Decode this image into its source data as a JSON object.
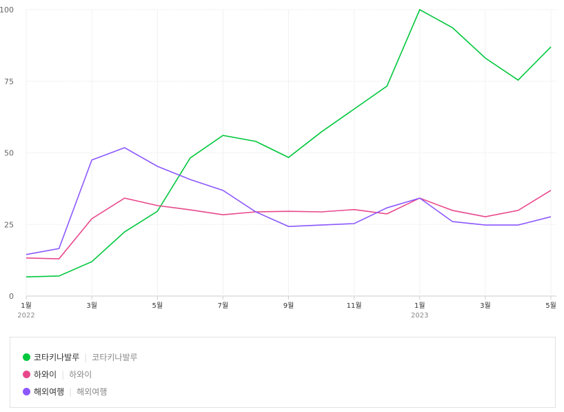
{
  "chart_data": {
    "type": "line",
    "x": [
      "1월",
      "2월",
      "3월",
      "4월",
      "5월",
      "6월",
      "7월",
      "8월",
      "9월",
      "10월",
      "11월",
      "12월",
      "1월",
      "2월",
      "3월",
      "4월",
      "5월"
    ],
    "x_tick_labels": [
      {
        "i": 0,
        "label": "1월",
        "year": "2022"
      },
      {
        "i": 2,
        "label": "3월"
      },
      {
        "i": 4,
        "label": "5월"
      },
      {
        "i": 6,
        "label": "7월"
      },
      {
        "i": 8,
        "label": "9월"
      },
      {
        "i": 10,
        "label": "11월"
      },
      {
        "i": 12,
        "label": "1월",
        "year": "2023"
      },
      {
        "i": 14,
        "label": "3월"
      },
      {
        "i": 16,
        "label": "5월"
      }
    ],
    "y_ticks": [
      "0",
      "25",
      "50",
      "75",
      "100"
    ],
    "ylim": [
      0,
      100
    ],
    "grid": true,
    "legend_position": "bottom",
    "series": [
      {
        "name": "코타키나발루",
        "sub": "코타키나발루",
        "color": "#00c73c",
        "values": [
          6.7,
          7,
          12,
          22.4,
          29.6,
          48.2,
          56.1,
          54,
          48.4,
          57.3,
          65.3,
          73.3,
          100,
          93.7,
          83.1,
          75.4,
          87
        ]
      },
      {
        "name": "하와이",
        "sub": "하와이",
        "color": "#e8478b",
        "values": [
          13.3,
          13,
          27,
          34.2,
          31.6,
          30.1,
          28.4,
          29.4,
          29.6,
          29.4,
          30.2,
          28.7,
          34.2,
          29.9,
          27.7,
          29.9,
          36.9
        ]
      },
      {
        "name": "해외여행",
        "sub": "해외여행",
        "color": "#8c58ff",
        "values": [
          14.5,
          16.6,
          47.5,
          51.8,
          45.3,
          40.7,
          36.9,
          29.4,
          24.3,
          24.8,
          25.3,
          30.8,
          34.2,
          26,
          24.8,
          24.8,
          27.7
        ]
      }
    ]
  }
}
